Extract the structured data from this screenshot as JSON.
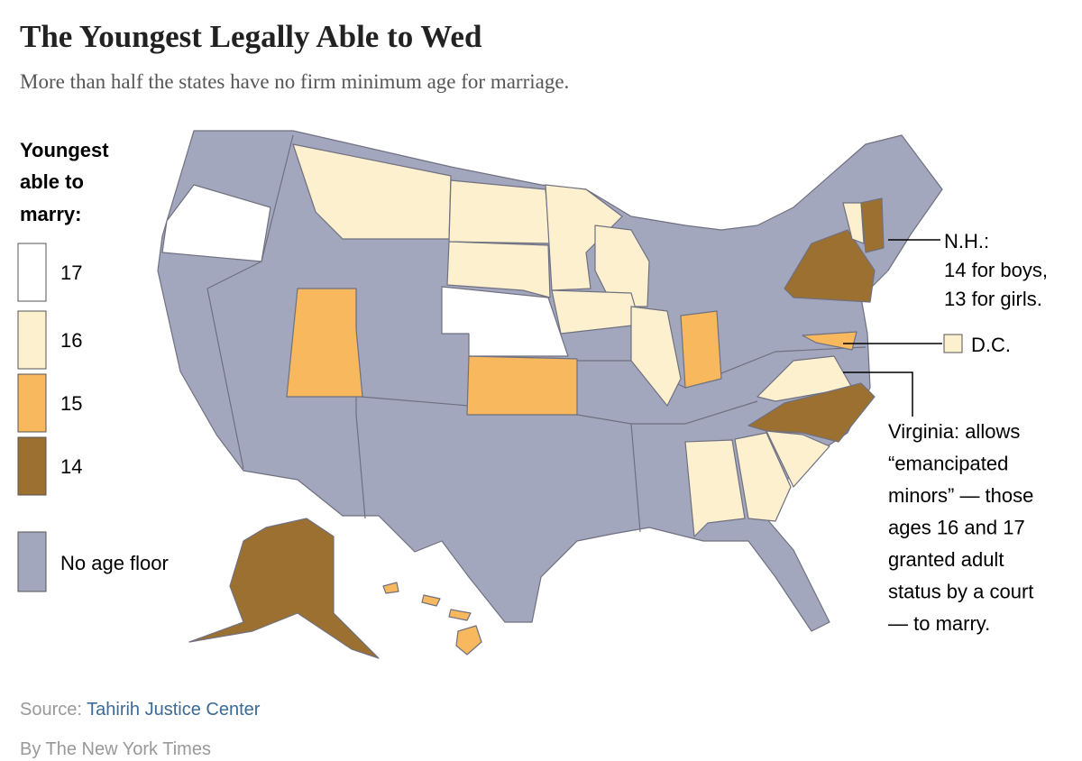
{
  "header": {
    "title": "The Youngest Legally Able to Wed",
    "subtitle": "More than half the states have no firm minimum age for marriage."
  },
  "legend": {
    "title_lines": [
      "Youngest",
      "able to",
      "marry:"
    ],
    "items": [
      {
        "label": "17",
        "color": "#ffffff"
      },
      {
        "label": "16",
        "color": "#fdf0cf"
      },
      {
        "label": "15",
        "color": "#f8b85e"
      },
      {
        "label": "14",
        "color": "#9b7031"
      },
      {
        "label": "No age floor",
        "color": "#a3a7bd"
      }
    ]
  },
  "annotations": {
    "nh": [
      "N.H.:",
      "14 for boys,",
      "13 for girls."
    ],
    "dc": "D.C.",
    "virginia": [
      "Virginia: allows",
      "“emancipated",
      "minors” — those",
      "ages 16 and 17",
      "granted adult",
      "status by a court",
      "— to marry."
    ]
  },
  "source": {
    "label": "Source:",
    "name": "Tahirih Justice Center"
  },
  "credit": "By The New York Times"
}
